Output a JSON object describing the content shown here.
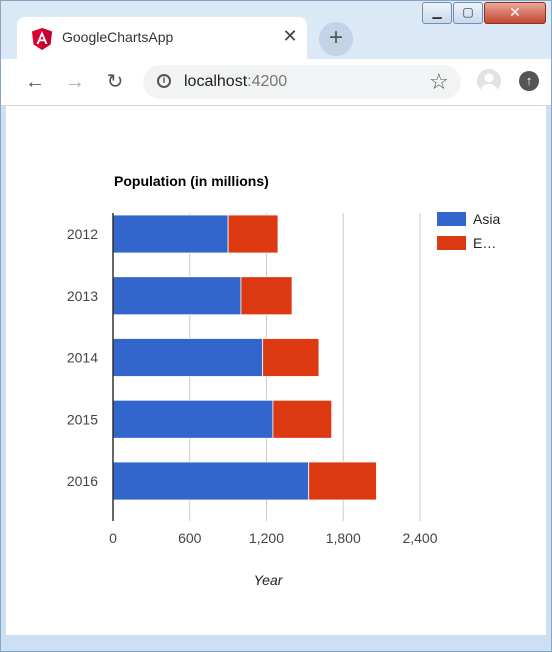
{
  "browser": {
    "tab_title": "GoogleChartsApp",
    "url_host": "localhost",
    "url_port": ":4200",
    "icons": {
      "favicon": "angular-icon",
      "close": "close-icon",
      "new_tab": "plus-icon",
      "back": "back-arrow-icon",
      "forward": "forward-arrow-icon",
      "reload": "reload-icon",
      "info": "info-icon",
      "bookmark": "star-icon",
      "profile": "profile-icon",
      "update": "update-icon"
    }
  },
  "chart_data": {
    "type": "bar",
    "orientation": "horizontal",
    "stacked": true,
    "title": "Population (in millions)",
    "xlabel": "Year",
    "ylabel": "",
    "categories": [
      "2012",
      "2013",
      "2014",
      "2015",
      "2016"
    ],
    "series": [
      {
        "name": "Asia",
        "values": [
          900,
          1000,
          1170,
          1250,
          1530
        ],
        "color": "#3366cc"
      },
      {
        "name": "E…",
        "values": [
          390,
          400,
          440,
          460,
          530
        ],
        "color": "#dc3912"
      }
    ],
    "xlim": [
      0,
      2400
    ],
    "xticks": [
      0,
      600,
      1200,
      1800,
      2400
    ],
    "xtick_labels": [
      "0",
      "600",
      "1,200",
      "1,800",
      "2,400"
    ],
    "grid": true,
    "legend_position": "right"
  }
}
